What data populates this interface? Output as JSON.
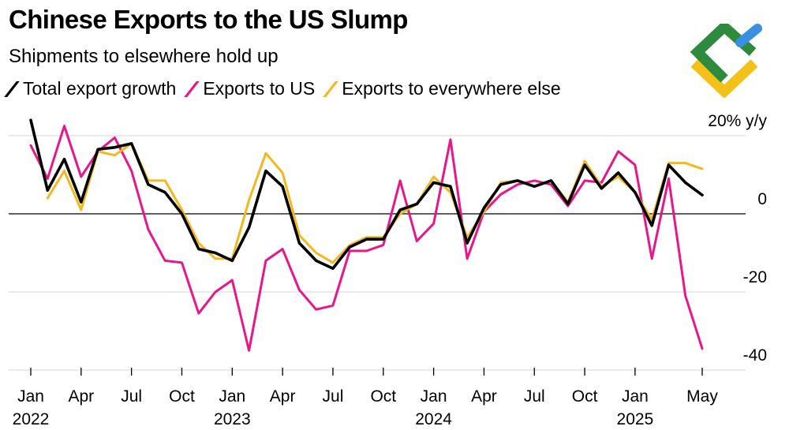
{
  "title": "Chinese Exports to the US Slump",
  "subtitle": "Shipments to elsewhere hold up",
  "legend": [
    {
      "label": "Total export growth",
      "color": "#000000"
    },
    {
      "label": "Exports to US",
      "color": "#e8168a"
    },
    {
      "label": "Exports to everywhere else",
      "color": "#f2b81c"
    }
  ],
  "logo": {
    "icon": "brand-logo-icon",
    "colors": [
      "#2e8b3d",
      "#f2c21b",
      "#3a8fe0"
    ]
  },
  "chart_data": {
    "type": "line",
    "ylabel": "20% y/y",
    "ylim": [
      -40,
      20
    ],
    "yticks": [
      20,
      0,
      -20,
      -40
    ],
    "ytick_labels": [
      "20% y/y",
      "0",
      "-20",
      "-40"
    ],
    "grid": true,
    "legend_position": "top",
    "x_months": [
      "2022-01",
      "2022-02",
      "2022-03",
      "2022-04",
      "2022-05",
      "2022-06",
      "2022-07",
      "2022-08",
      "2022-09",
      "2022-10",
      "2022-11",
      "2022-12",
      "2023-01",
      "2023-02",
      "2023-03",
      "2023-04",
      "2023-05",
      "2023-06",
      "2023-07",
      "2023-08",
      "2023-09",
      "2023-10",
      "2023-11",
      "2023-12",
      "2024-01",
      "2024-02",
      "2024-03",
      "2024-04",
      "2024-05",
      "2024-06",
      "2024-07",
      "2024-08",
      "2024-09",
      "2024-10",
      "2024-11",
      "2024-12",
      "2025-01",
      "2025-02",
      "2025-03",
      "2025-04",
      "2025-05"
    ],
    "xticks": [
      {
        "month": "2022-01",
        "label": "Jan",
        "year": "2022"
      },
      {
        "month": "2022-04",
        "label": "Apr",
        "year": ""
      },
      {
        "month": "2022-07",
        "label": "Jul",
        "year": ""
      },
      {
        "month": "2022-10",
        "label": "Oct",
        "year": ""
      },
      {
        "month": "2023-01",
        "label": "Jan",
        "year": "2023"
      },
      {
        "month": "2023-04",
        "label": "Apr",
        "year": ""
      },
      {
        "month": "2023-07",
        "label": "Jul",
        "year": ""
      },
      {
        "month": "2023-10",
        "label": "Oct",
        "year": ""
      },
      {
        "month": "2024-01",
        "label": "Jan",
        "year": "2024"
      },
      {
        "month": "2024-04",
        "label": "Apr",
        "year": ""
      },
      {
        "month": "2024-07",
        "label": "Jul",
        "year": ""
      },
      {
        "month": "2024-10",
        "label": "Oct",
        "year": ""
      },
      {
        "month": "2025-01",
        "label": "Jan",
        "year": "2025"
      },
      {
        "month": "2025-05",
        "label": "May",
        "year": ""
      }
    ],
    "series": [
      {
        "name": "Total export growth",
        "color": "#000000",
        "values": [
          24,
          6,
          14,
          3,
          16.5,
          17,
          18,
          7.5,
          5.5,
          0,
          -9,
          -10,
          -12,
          -3.5,
          11,
          7,
          -7.5,
          -12,
          -14,
          -8.5,
          -6.5,
          -6.5,
          1,
          2.5,
          8,
          7,
          -7.5,
          1.5,
          7.5,
          8.5,
          7,
          8.5,
          2.5,
          12.5,
          6.5,
          10.5,
          5.5,
          -3,
          12.5,
          8,
          4.8
        ]
      },
      {
        "name": "Exports to US",
        "color": "#e8168a",
        "values": [
          17.5,
          9,
          22.5,
          9.5,
          16,
          19.5,
          11,
          -4,
          -12,
          -12.5,
          -25.5,
          -20,
          -17,
          -35,
          -12,
          -9,
          -19.5,
          -24.5,
          -23.5,
          -9.5,
          -9.5,
          -8,
          8.5,
          -7,
          -2.5,
          19,
          -11.5,
          0.5,
          5,
          7.5,
          8.5,
          7.5,
          2,
          8.5,
          8,
          16,
          12.5,
          -11.5,
          9,
          -21,
          -34.5
        ]
      },
      {
        "name": "Exports to everywhere else",
        "color": "#f2b81c",
        "values": [
          null,
          4,
          11,
          1,
          16,
          15,
          18,
          8.5,
          8.5,
          1,
          -7.5,
          -11.5,
          -11.5,
          3.5,
          15.5,
          10.5,
          -5.5,
          -10,
          -12.5,
          -8,
          -6,
          -6,
          0,
          2.5,
          9.5,
          5.5,
          -6,
          0.5,
          8,
          8.5,
          7,
          8.5,
          3,
          13.5,
          7,
          9.5,
          5.5,
          -1.5,
          13,
          13,
          11.5
        ]
      }
    ]
  }
}
